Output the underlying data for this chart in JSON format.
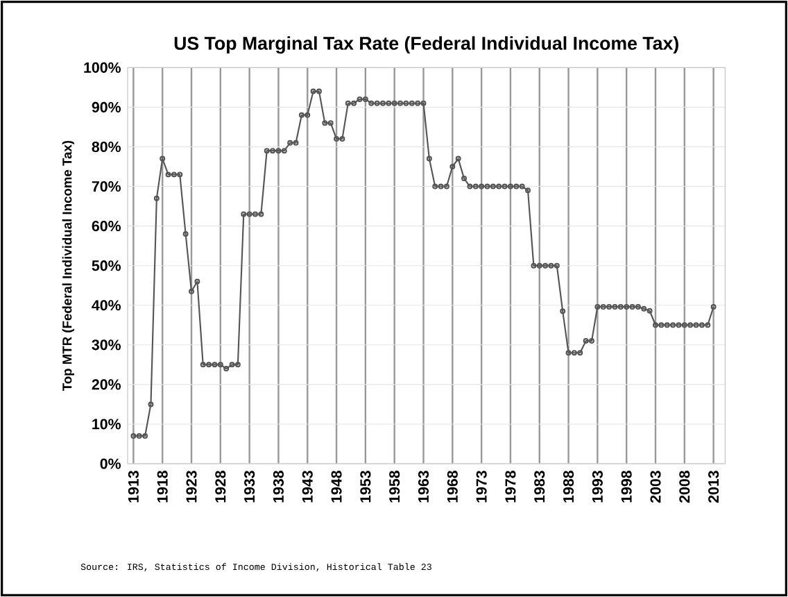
{
  "chart_data": {
    "type": "line",
    "title": "US Top Marginal Tax Rate (Federal Individual Income Tax)",
    "ylabel": "Top MTR (Federal Individual Income Tax)",
    "annotations": [
      "Source: IRS, Statistics of Income Division, Historical Table 23"
    ],
    "x": [
      1913,
      1914,
      1915,
      1916,
      1917,
      1918,
      1919,
      1920,
      1921,
      1922,
      1923,
      1924,
      1925,
      1926,
      1927,
      1928,
      1929,
      1930,
      1931,
      1932,
      1933,
      1934,
      1935,
      1936,
      1937,
      1938,
      1939,
      1940,
      1941,
      1942,
      1943,
      1944,
      1945,
      1946,
      1947,
      1948,
      1949,
      1950,
      1951,
      1952,
      1953,
      1954,
      1955,
      1956,
      1957,
      1958,
      1959,
      1960,
      1961,
      1962,
      1963,
      1964,
      1965,
      1966,
      1967,
      1968,
      1969,
      1970,
      1971,
      1972,
      1973,
      1974,
      1975,
      1976,
      1977,
      1978,
      1979,
      1980,
      1981,
      1982,
      1983,
      1984,
      1985,
      1986,
      1987,
      1988,
      1989,
      1990,
      1991,
      1992,
      1993,
      1994,
      1995,
      1996,
      1997,
      1998,
      1999,
      2000,
      2001,
      2002,
      2003,
      2004,
      2005,
      2006,
      2007,
      2008,
      2009,
      2010,
      2011,
      2012,
      2013
    ],
    "series": [
      {
        "color": "#555555",
        "values": [
          7,
          7,
          7,
          15,
          67,
          77,
          73,
          73,
          73,
          58,
          43.5,
          46,
          25,
          25,
          25,
          25,
          24,
          25,
          25,
          63,
          63,
          63,
          63,
          79,
          79,
          79,
          79,
          81,
          81,
          88,
          88,
          94,
          94,
          86,
          86,
          82,
          82,
          91,
          91,
          92,
          92,
          91,
          91,
          91,
          91,
          91,
          91,
          91,
          91,
          91,
          91,
          77,
          70,
          70,
          70,
          75,
          77,
          72,
          70,
          70,
          70,
          70,
          70,
          70,
          70,
          70,
          70,
          70,
          69,
          50,
          50,
          50,
          50,
          50,
          38.5,
          28,
          28,
          28,
          31,
          31,
          39.6,
          39.6,
          39.6,
          39.6,
          39.6,
          39.6,
          39.6,
          39.6,
          39.1,
          38.6,
          35,
          35,
          35,
          35,
          35,
          35,
          35,
          35,
          35,
          35,
          39.6
        ]
      }
    ],
    "xlim": [
      1912,
      2015
    ],
    "xticks": [
      1913,
      1918,
      1923,
      1928,
      1933,
      1938,
      1943,
      1948,
      1953,
      1958,
      1963,
      1968,
      1973,
      1978,
      1983,
      1988,
      1993,
      1998,
      2003,
      2008,
      2013
    ],
    "ylim": [
      0,
      100
    ],
    "yticks": [
      {
        "value": 0,
        "label": "0%"
      },
      {
        "value": 10,
        "label": "10%"
      },
      {
        "value": 20,
        "label": "20%"
      },
      {
        "value": 30,
        "label": "30%"
      },
      {
        "value": 40,
        "label": "40%"
      },
      {
        "value": 50,
        "label": "50%"
      },
      {
        "value": 60,
        "label": "60%"
      },
      {
        "value": 70,
        "label": "70%"
      },
      {
        "value": 80,
        "label": "80%"
      },
      {
        "value": 90,
        "label": "90%"
      },
      {
        "value": 100,
        "label": "100%"
      }
    ],
    "grid": true,
    "marker": "circle",
    "line_style": "solid"
  }
}
